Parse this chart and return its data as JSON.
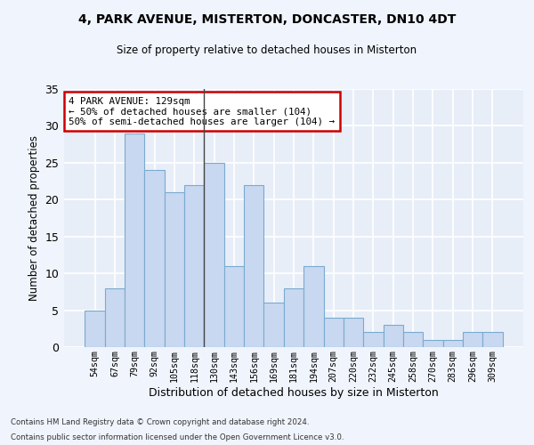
{
  "title1": "4, PARK AVENUE, MISTERTON, DONCASTER, DN10 4DT",
  "title2": "Size of property relative to detached houses in Misterton",
  "xlabel": "Distribution of detached houses by size in Misterton",
  "ylabel": "Number of detached properties",
  "categories": [
    "54sqm",
    "67sqm",
    "79sqm",
    "92sqm",
    "105sqm",
    "118sqm",
    "130sqm",
    "143sqm",
    "156sqm",
    "169sqm",
    "181sqm",
    "194sqm",
    "207sqm",
    "220sqm",
    "232sqm",
    "245sqm",
    "258sqm",
    "270sqm",
    "283sqm",
    "296sqm",
    "309sqm"
  ],
  "values": [
    5,
    8,
    29,
    24,
    21,
    22,
    25,
    11,
    22,
    6,
    8,
    11,
    4,
    4,
    2,
    3,
    2,
    1,
    1,
    2,
    2
  ],
  "bar_color": "#c8d8f0",
  "bar_edge_color": "#7aaad0",
  "highlight_bar_index": 6,
  "annotation_text": "4 PARK AVENUE: 129sqm\n← 50% of detached houses are smaller (104)\n50% of semi-detached houses are larger (104) →",
  "annotation_box_color": "#ffffff",
  "annotation_box_edge_color": "#cc0000",
  "ylim": [
    0,
    35
  ],
  "yticks": [
    0,
    5,
    10,
    15,
    20,
    25,
    30,
    35
  ],
  "background_color": "#e8eef8",
  "grid_color": "#ffffff",
  "fig_background": "#f0f4fc",
  "footer1": "Contains HM Land Registry data © Crown copyright and database right 2024.",
  "footer2": "Contains public sector information licensed under the Open Government Licence v3.0."
}
